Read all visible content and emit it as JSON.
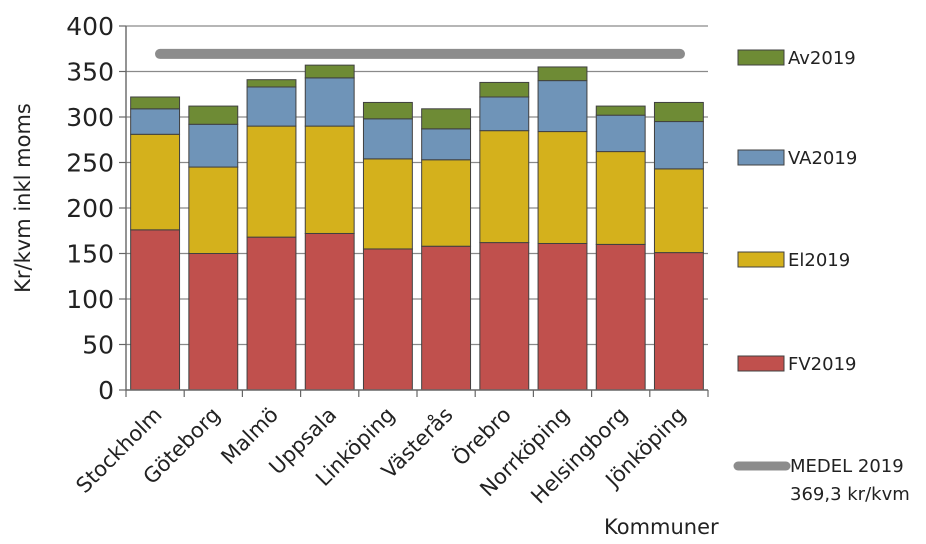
{
  "chart_data": {
    "type": "bar",
    "stacked": true,
    "categories": [
      "Stockholm",
      "Göteborg",
      "Malmö",
      "Uppsala",
      "Linköping",
      "Västerås",
      "Örebro",
      "Norrköping",
      "Helsingborg",
      "Jönköping"
    ],
    "series": [
      {
        "name": "FV2019",
        "color": "#C0504D",
        "values": [
          176,
          150,
          168,
          172,
          155,
          158,
          162,
          161,
          160,
          151
        ]
      },
      {
        "name": "El2019",
        "color": "#D4B11C",
        "values": [
          105,
          95,
          122,
          118,
          99,
          95,
          123,
          123,
          102,
          92
        ]
      },
      {
        "name": "VA2019",
        "color": "#6F94B8",
        "values": [
          28,
          47,
          43,
          53,
          44,
          34,
          37,
          56,
          40,
          52
        ]
      },
      {
        "name": "Av2019",
        "color": "#6E8B35",
        "values": [
          13,
          20,
          8,
          14,
          18,
          22,
          16,
          15,
          10,
          21
        ]
      }
    ],
    "reference_line": {
      "name": "MEDEL 2019",
      "note": "369,3 kr/kvm",
      "value": 369.3,
      "color": "#8C8C8C"
    },
    "ylabel": "Kr/kvm inkl moms",
    "xlabel": "Kommuner",
    "ylim": [
      0,
      400
    ],
    "yticks": [
      0,
      50,
      100,
      150,
      200,
      250,
      300,
      350,
      400
    ],
    "grid": true,
    "legend_position": "right"
  }
}
